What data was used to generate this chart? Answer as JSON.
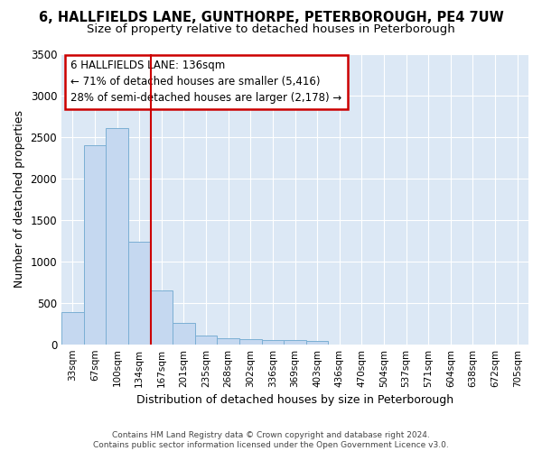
{
  "title1": "6, HALLFIELDS LANE, GUNTHORPE, PETERBOROUGH, PE4 7UW",
  "title2": "Size of property relative to detached houses in Peterborough",
  "xlabel": "Distribution of detached houses by size in Peterborough",
  "ylabel": "Number of detached properties",
  "annotation_line1": "6 HALLFIELDS LANE: 136sqm",
  "annotation_line2": "← 71% of detached houses are smaller (5,416)",
  "annotation_line3": "28% of semi-detached houses are larger (2,178) →",
  "footer1": "Contains HM Land Registry data © Crown copyright and database right 2024.",
  "footer2": "Contains public sector information licensed under the Open Government Licence v3.0.",
  "categories": [
    "33sqm",
    "67sqm",
    "100sqm",
    "134sqm",
    "167sqm",
    "201sqm",
    "235sqm",
    "268sqm",
    "302sqm",
    "336sqm",
    "369sqm",
    "403sqm",
    "436sqm",
    "470sqm",
    "504sqm",
    "537sqm",
    "571sqm",
    "604sqm",
    "638sqm",
    "672sqm",
    "705sqm"
  ],
  "values": [
    390,
    2400,
    2610,
    1240,
    645,
    260,
    100,
    70,
    60,
    55,
    50,
    40,
    0,
    0,
    0,
    0,
    0,
    0,
    0,
    0,
    0
  ],
  "bar_color": "#c5d8f0",
  "bar_edge_color": "#7bafd4",
  "ref_line_color": "#cc0000",
  "annotation_box_color": "#cc0000",
  "figure_bg": "#ffffff",
  "axes_bg": "#dce8f5",
  "grid_color": "#ffffff",
  "ylim": [
    0,
    3500
  ],
  "yticks": [
    0,
    500,
    1000,
    1500,
    2000,
    2500,
    3000,
    3500
  ],
  "ref_bar_index": 3,
  "title1_fontsize": 10.5,
  "title2_fontsize": 9.5
}
